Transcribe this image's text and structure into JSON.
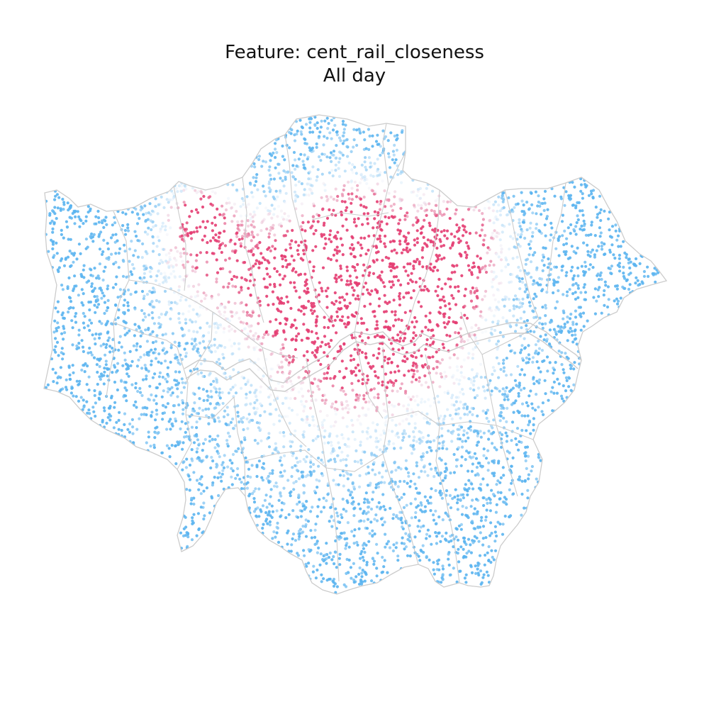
{
  "figure": {
    "title": "Feature: cent_rail_closeness",
    "subtitle": "All day"
  },
  "map": {
    "region": "London",
    "feature": "cent_rail_closeness",
    "colors": {
      "low": "#5ab4f0",
      "mid": "#eef4fb",
      "high": "#e43d72",
      "boundary": "#cccccc",
      "river": "#cccccc",
      "background": "#ffffff"
    }
  }
}
